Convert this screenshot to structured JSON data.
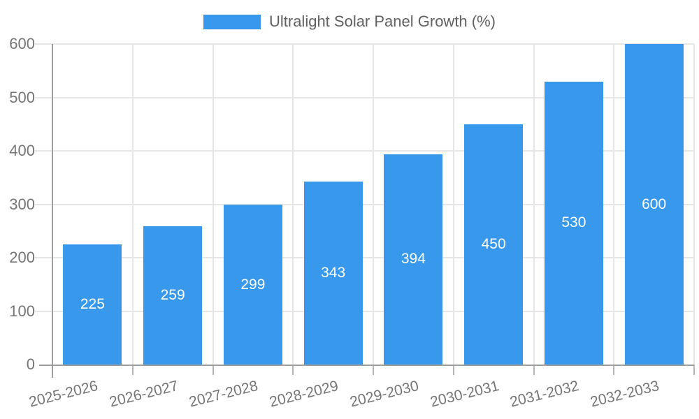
{
  "legend": {
    "label": "Ultralight Solar Panel Growth (%)"
  },
  "chart_data": {
    "type": "bar",
    "title": "Ultralight Solar Panel Growth (%)",
    "categories": [
      "2025-2026",
      "2026-2027",
      "2027-2028",
      "2028-2029",
      "2029-2030",
      "2030-2031",
      "2031-2032",
      "2032-2033"
    ],
    "values": [
      225,
      259,
      299,
      343,
      394,
      450,
      530,
      600
    ],
    "value_labels": [
      "225",
      "259",
      "299",
      "343",
      "394",
      "450",
      "530",
      "600"
    ],
    "xlabel": "",
    "ylabel": "",
    "ylim": [
      0,
      600
    ],
    "yticks": [
      0,
      100,
      200,
      300,
      400,
      500,
      600
    ],
    "grid": true,
    "legend_position": "top"
  },
  "colors": {
    "bar": "#3899EC",
    "grid": "#e6e6e6",
    "axis": "#9e9e9e",
    "x_tick": "#b5b5b5",
    "tick_label": "#757575",
    "legend_text": "#616161",
    "value_label": "#ffffff",
    "background": "#ffffff"
  }
}
